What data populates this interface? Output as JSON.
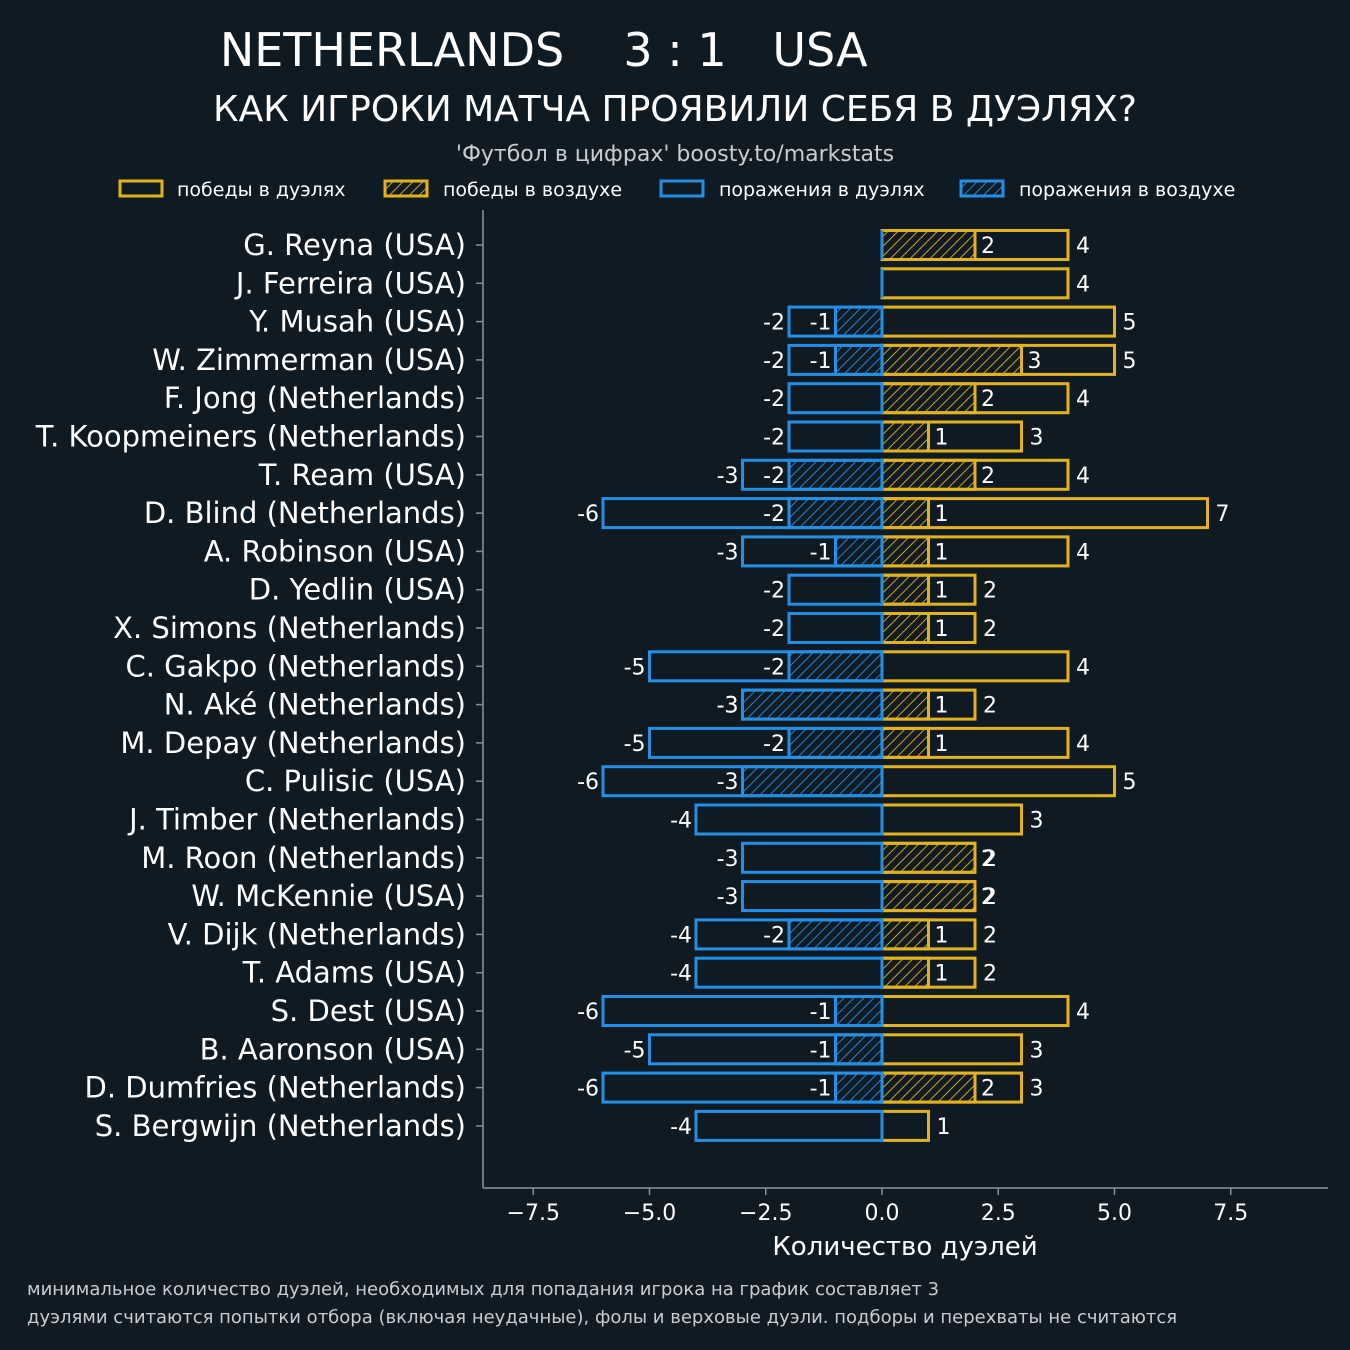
{
  "header": {
    "team_home": "NETHERLANDS",
    "score": "3 : 1",
    "team_away": "USA",
    "subtitle": "КАК ИГРОКИ МАТЧА ПРОЯВИЛИ СЕБЯ В ДУЭЛЯХ?",
    "source": "'Футбол в цифрах' boosty.to/markstats"
  },
  "legend": [
    {
      "label": "победы в дуэлях",
      "color": "#e3b21f",
      "hatch": false
    },
    {
      "label": "победы в воздухе",
      "color": "#e3b21f",
      "hatch": true
    },
    {
      "label": "поражения в дуэлях",
      "color": "#2390e6",
      "hatch": false
    },
    {
      "label": "поражения в воздухе",
      "color": "#2390e6",
      "hatch": true
    }
  ],
  "colors": {
    "background": "#101a22",
    "win": "#e3b21f",
    "loss": "#2390e6",
    "axis": "#8a9299"
  },
  "chart_data": {
    "type": "bar",
    "orientation": "horizontal",
    "xlabel": "Количество дуэлей",
    "xlim": [
      -8.5,
      9.7
    ],
    "xticks": [
      -7.5,
      -5.0,
      -2.5,
      0.0,
      2.5,
      5.0,
      7.5
    ],
    "xtick_labels": [
      "−7.5",
      "−5.0",
      "−2.5",
      "0.0",
      "2.5",
      "5.0",
      "7.5"
    ],
    "categories": [
      "G. Reyna (USA)",
      "J. Ferreira (USA)",
      "Y. Musah (USA)",
      "W. Zimmerman (USA)",
      "F. Jong (Netherlands)",
      "T. Koopmeiners (Netherlands)",
      "T. Ream (USA)",
      "D. Blind (Netherlands)",
      "A. Robinson (USA)",
      "D. Yedlin (USA)",
      "X. Simons (Netherlands)",
      "C. Gakpo (Netherlands)",
      "N. Aké (Netherlands)",
      "M. Depay (Netherlands)",
      "C. Pulisic (USA)",
      "J. Timber (Netherlands)",
      "M. Roon (Netherlands)",
      "W. McKennie (USA)",
      "V. Dijk (Netherlands)",
      "T. Adams (USA)",
      "S. Dest (USA)",
      "B. Aaronson (USA)",
      "D. Dumfries (Netherlands)",
      "S. Bergwijn (Netherlands)"
    ],
    "series": [
      {
        "name": "победы в дуэлях",
        "values": [
          4,
          4,
          5,
          5,
          4,
          3,
          4,
          7,
          4,
          2,
          2,
          4,
          2,
          4,
          5,
          3,
          2,
          2,
          2,
          2,
          4,
          3,
          3,
          1
        ]
      },
      {
        "name": "победы в воздухе",
        "values": [
          2,
          0,
          0,
          3,
          2,
          1,
          2,
          1,
          1,
          1,
          1,
          0,
          1,
          1,
          0,
          0,
          2,
          2,
          1,
          1,
          0,
          0,
          2,
          0
        ]
      },
      {
        "name": "поражения в дуэлях",
        "values": [
          0,
          0,
          -2,
          -2,
          -2,
          -2,
          -3,
          -6,
          -3,
          -2,
          -2,
          -5,
          -3,
          -5,
          -6,
          -4,
          -3,
          -3,
          -4,
          -4,
          -6,
          -5,
          -6,
          -4
        ]
      },
      {
        "name": "поражения в воздухе",
        "values": [
          0,
          0,
          -1,
          -1,
          0,
          0,
          -2,
          -2,
          -1,
          0,
          0,
          -2,
          -3,
          -2,
          -3,
          0,
          0,
          0,
          -2,
          0,
          -1,
          -1,
          -1,
          0
        ]
      }
    ]
  },
  "footnotes": [
    "минимальное количество дуэлей, необходимых для попадания игрока на график составляет 3",
    "дуэлями считаются попытки отбора (включая неудачные), фолы и верховые дуэли. подборы и перехваты не считаются"
  ]
}
